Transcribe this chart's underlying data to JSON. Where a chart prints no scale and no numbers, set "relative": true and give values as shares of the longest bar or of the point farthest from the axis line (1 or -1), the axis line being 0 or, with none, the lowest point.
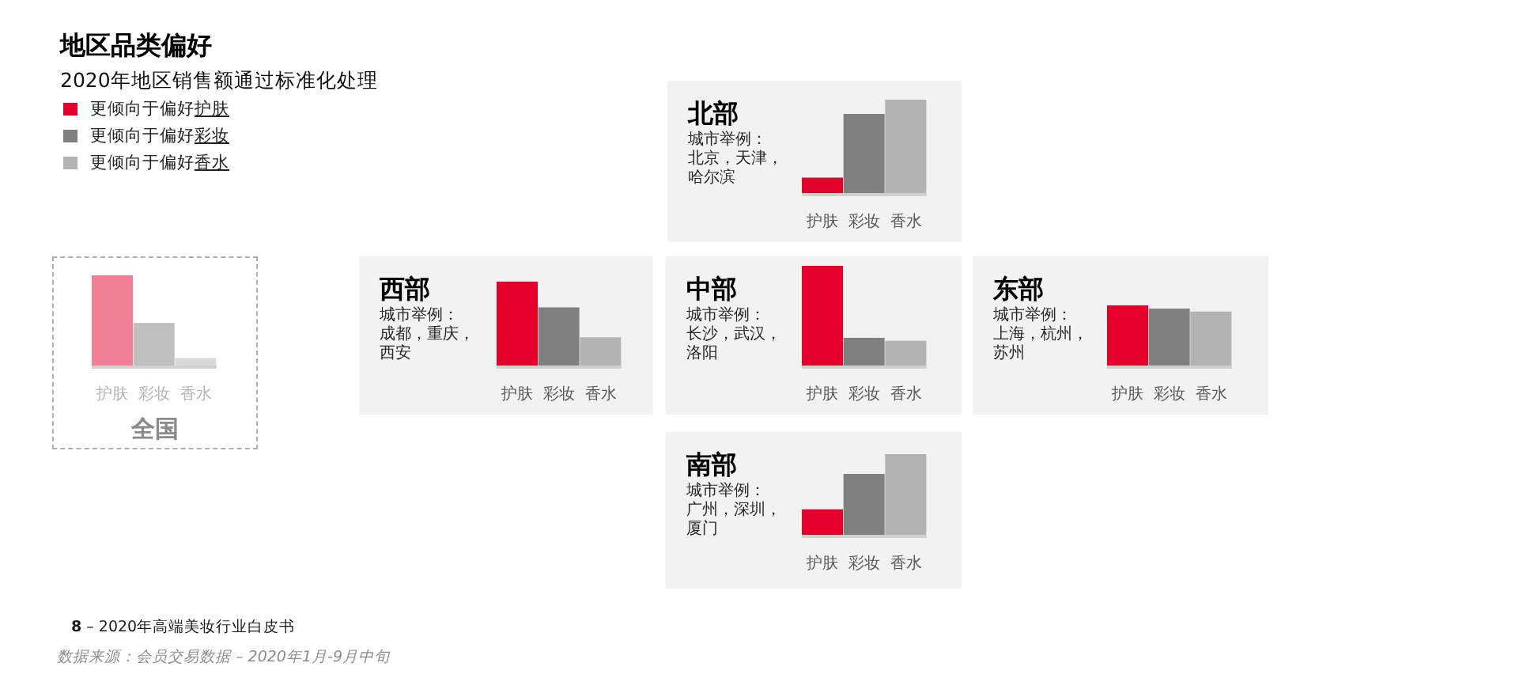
{
  "chart_data": [
    {
      "type": "other",
      "title": "地区品类偏好",
      "subtitle": "2020年地区销售额通过标准化处理",
      "annotations": [
        "更倾向于偏好护肤",
        "更倾向于偏好彩妆",
        "更倾向于偏好香水"
      ],
      "colors": [
        "#e4002b",
        "#808080",
        "#b3b3b3"
      ]
    },
    {
      "type": "bar",
      "title": "北部",
      "subtitle": "城市举例：北京，天津，哈尔滨",
      "categories": [
        "护肤",
        "彩妆",
        "香水"
      ],
      "values": [
        0.18,
        0.85,
        1
      ],
      "colors": [
        "#e4002b",
        "#808080",
        "#b3b3b3"
      ],
      "relative": true
    },
    {
      "type": "bar",
      "title": "全国",
      "categories": [
        "护肤",
        "彩妆",
        "香水"
      ],
      "values": [
        1,
        0.48,
        0.1
      ],
      "colors": [
        "#f08096",
        "#bfbfbf",
        "#d9d9d9"
      ],
      "relative": true
    },
    {
      "type": "bar",
      "title": "西部",
      "subtitle": "城市举例：成都，重庆，西安",
      "categories": [
        "护肤",
        "彩妆",
        "香水"
      ],
      "values": [
        1,
        0.7,
        0.35
      ],
      "colors": [
        "#e4002b",
        "#808080",
        "#b3b3b3"
      ],
      "relative": true
    },
    {
      "type": "bar",
      "title": "中部",
      "subtitle": "城市举例：长沙，武汉，洛阳",
      "categories": [
        "护肤",
        "彩妆",
        "香水"
      ],
      "values": [
        1,
        0.29,
        0.26
      ],
      "colors": [
        "#e4002b",
        "#808080",
        "#b3b3b3"
      ],
      "relative": true
    },
    {
      "type": "bar",
      "title": "东部",
      "subtitle": "城市举例：上海，杭州，苏州",
      "categories": [
        "护肤",
        "彩妆",
        "香水"
      ],
      "values": [
        1,
        0.95,
        0.9
      ],
      "colors": [
        "#e4002b",
        "#808080",
        "#b3b3b3"
      ],
      "relative": true
    },
    {
      "type": "bar",
      "title": "南部",
      "subtitle": "城市举例：广州，深圳，厦门",
      "categories": [
        "护肤",
        "彩妆",
        "香水"
      ],
      "values": [
        0.33,
        0.76,
        1
      ],
      "colors": [
        "#e4002b",
        "#808080",
        "#b3b3b3"
      ],
      "relative": true
    },
    {
      "type": "other",
      "annotations": [
        "8 – 2020年高端美妆行业白皮书",
        "数据来源：会员交易数据 – 2020年1月-9月中旬"
      ]
    }
  ]
}
